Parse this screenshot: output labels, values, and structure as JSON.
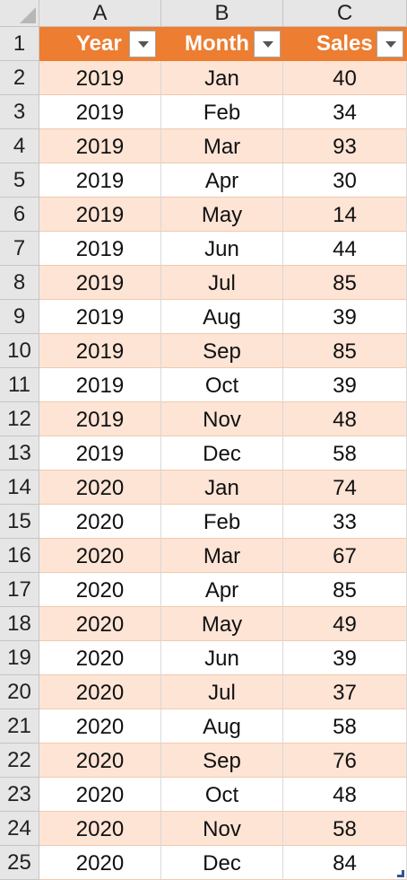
{
  "columns": [
    "A",
    "B",
    "C"
  ],
  "row_numbers": [
    "1",
    "2",
    "3",
    "4",
    "5",
    "6",
    "7",
    "8",
    "9",
    "10",
    "11",
    "12",
    "13",
    "14",
    "15",
    "16",
    "17",
    "18",
    "19",
    "20",
    "21",
    "22",
    "23",
    "24",
    "25"
  ],
  "table": {
    "headers": [
      "Year",
      "Month",
      "Sales"
    ],
    "rows": [
      [
        "2019",
        "Jan",
        "40"
      ],
      [
        "2019",
        "Feb",
        "34"
      ],
      [
        "2019",
        "Mar",
        "93"
      ],
      [
        "2019",
        "Apr",
        "30"
      ],
      [
        "2019",
        "May",
        "14"
      ],
      [
        "2019",
        "Jun",
        "44"
      ],
      [
        "2019",
        "Jul",
        "85"
      ],
      [
        "2019",
        "Aug",
        "39"
      ],
      [
        "2019",
        "Sep",
        "85"
      ],
      [
        "2019",
        "Oct",
        "39"
      ],
      [
        "2019",
        "Nov",
        "48"
      ],
      [
        "2019",
        "Dec",
        "58"
      ],
      [
        "2020",
        "Jan",
        "74"
      ],
      [
        "2020",
        "Feb",
        "33"
      ],
      [
        "2020",
        "Mar",
        "67"
      ],
      [
        "2020",
        "Apr",
        "85"
      ],
      [
        "2020",
        "May",
        "49"
      ],
      [
        "2020",
        "Jun",
        "39"
      ],
      [
        "2020",
        "Jul",
        "37"
      ],
      [
        "2020",
        "Aug",
        "58"
      ],
      [
        "2020",
        "Sep",
        "76"
      ],
      [
        "2020",
        "Oct",
        "48"
      ],
      [
        "2020",
        "Nov",
        "58"
      ],
      [
        "2020",
        "Dec",
        "84"
      ]
    ]
  },
  "icons": {
    "filter": "dropdown-arrow-icon",
    "select_all": "select-all-corner-icon",
    "resize": "table-resize-handle-icon"
  },
  "colors": {
    "header_fill": "#ed7d31",
    "band_fill": "#fde4d5",
    "header_text": "#ffffff"
  }
}
